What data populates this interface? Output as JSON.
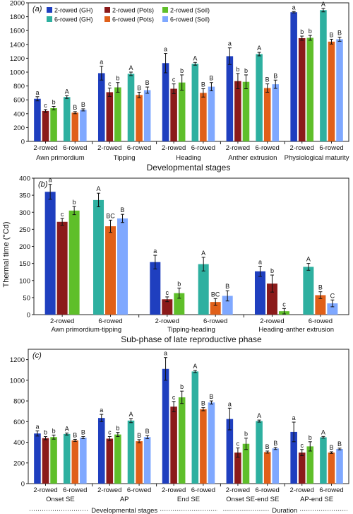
{
  "y_axis_shared_label": "Thermal time (°Cd)",
  "legend": {
    "rows": [
      [
        {
          "label": "2-rowed (GH)",
          "color": "#1f3fbf"
        },
        {
          "label": "2-rowed (Pots)",
          "color": "#8b1a1a"
        },
        {
          "label": "2-rowed (Soil)",
          "color": "#5fbf2a"
        }
      ],
      [
        {
          "label": "6-rowed (GH)",
          "color": "#2eb0a0"
        },
        {
          "label": "6-rowed (Pots)",
          "color": "#e0601a"
        },
        {
          "label": "6-rowed (Soil)",
          "color": "#7fa8ff"
        }
      ]
    ]
  },
  "chart_data": [
    {
      "type": "bar",
      "panel": "(a)",
      "xlabel": "Developmental stages",
      "ylim": [
        0,
        2000
      ],
      "yticks": [
        0,
        200,
        400,
        600,
        800,
        1000,
        1200,
        1400,
        1600,
        1800,
        2000
      ],
      "grid": false,
      "legend_position": "top-left",
      "groups": [
        {
          "name": "Awn primordium",
          "subgroups": [
            {
              "name": "2-rowed",
              "values": [
                615,
                440,
                480
              ],
              "errors": [
                30,
                20,
                25
              ],
              "letters": [
                "a",
                "c",
                "b"
              ]
            },
            {
              "name": "6-rowed",
              "values": [
                640,
                415,
                455
              ],
              "errors": [
                20,
                15,
                15
              ],
              "letters": [
                "A",
                "B",
                "B"
              ]
            }
          ]
        },
        {
          "name": "Tipping",
          "subgroups": [
            {
              "name": "2-rowed",
              "values": [
                985,
                710,
                780
              ],
              "errors": [
                100,
                60,
                70
              ],
              "letters": [
                "a",
                "c",
                "b"
              ]
            },
            {
              "name": "6-rowed",
              "values": [
                975,
                670,
                740
              ],
              "errors": [
                25,
                40,
                45
              ],
              "letters": [
                "A",
                "B",
                "B"
              ]
            }
          ]
        },
        {
          "name": "Heading",
          "subgroups": [
            {
              "name": "2-rowed",
              "values": [
                1130,
                760,
                850
              ],
              "errors": [
                140,
                70,
                110
              ],
              "letters": [
                "a",
                "c",
                "b"
              ]
            },
            {
              "name": "6-rowed",
              "values": [
                1120,
                700,
                790
              ],
              "errors": [
                20,
                60,
                60
              ],
              "letters": [
                "A",
                "B",
                "B"
              ]
            }
          ]
        },
        {
          "name": "Anther extrusion",
          "subgroups": [
            {
              "name": "2-rowed",
              "values": [
                1230,
                870,
                860
              ],
              "errors": [
                120,
                110,
                100
              ],
              "letters": [
                "a",
                "b",
                "b"
              ]
            },
            {
              "name": "6-rowed",
              "values": [
                1260,
                770,
                825
              ],
              "errors": [
                25,
                60,
                60
              ],
              "letters": [
                "A",
                "B",
                "B"
              ]
            }
          ]
        },
        {
          "name": "Physiological maturity",
          "subgroups": [
            {
              "name": "2-rowed",
              "values": [
                1865,
                1490,
                1495
              ],
              "errors": [
                10,
                30,
                35
              ],
              "letters": [
                "a",
                "b",
                "b"
              ]
            },
            {
              "name": "6-rowed",
              "values": [
                1895,
                1440,
                1475
              ],
              "errors": [
                25,
                35,
                30
              ],
              "letters": [
                "A",
                "B",
                "B"
              ]
            }
          ]
        }
      ],
      "series": [
        {
          "name": "2-rowed (GH)",
          "color": "#1f3fbf"
        },
        {
          "name": "2-rowed (Pots)",
          "color": "#8b1a1a"
        },
        {
          "name": "2-rowed (Soil)",
          "color": "#5fbf2a"
        },
        {
          "name": "6-rowed (GH)",
          "color": "#2eb0a0"
        },
        {
          "name": "6-rowed (Pots)",
          "color": "#e0601a"
        },
        {
          "name": "6-rowed (Soil)",
          "color": "#7fa8ff"
        }
      ]
    },
    {
      "type": "bar",
      "panel": "(b)",
      "xlabel": "Sub-phase of late reproductive phase",
      "ylim": [
        0,
        400
      ],
      "yticks": [
        0,
        50,
        100,
        150,
        200,
        250,
        300,
        350,
        400
      ],
      "grid": false,
      "groups": [
        {
          "name": "Awn primordium-tipping",
          "subgroups": [
            {
              "name": "2-rowed",
              "values": [
                360,
                272,
                305
              ],
              "errors": [
                22,
                10,
                12
              ],
              "letters": [
                "a",
                "c",
                "b"
              ]
            },
            {
              "name": "6-rowed",
              "values": [
                336,
                259,
                282
              ],
              "errors": [
                20,
                18,
                12
              ],
              "letters": [
                "A",
                "BC",
                "B"
              ]
            }
          ]
        },
        {
          "name": "Tipping-heading",
          "subgroups": [
            {
              "name": "2-rowed",
              "values": [
                154,
                45,
                63
              ],
              "errors": [
                20,
                7,
                15
              ],
              "letters": [
                "a",
                "c",
                "b"
              ]
            },
            {
              "name": "6-rowed",
              "values": [
                148,
                37,
                55
              ],
              "errors": [
                20,
                10,
                15
              ],
              "letters": [
                "A",
                "BC",
                "B"
              ]
            }
          ]
        },
        {
          "name": "Heading-anther extrusion",
          "subgroups": [
            {
              "name": "2-rowed",
              "values": [
                127,
                91,
                10
              ],
              "errors": [
                15,
                25,
                8
              ],
              "letters": [
                "a",
                "b",
                "c"
              ]
            },
            {
              "name": "6-rowed",
              "values": [
                140,
                57,
                33
              ],
              "errors": [
                10,
                10,
                10
              ],
              "letters": [
                "A",
                "B",
                "C"
              ]
            }
          ]
        }
      ]
    },
    {
      "type": "bar",
      "panel": "(c)",
      "xlabel": "",
      "ylim": [
        0,
        1300
      ],
      "yticks": [
        0,
        200,
        400,
        600,
        800,
        1000,
        1200
      ],
      "grid": false,
      "footer_labels": [
        "Developmental stages",
        "Duration"
      ],
      "groups": [
        {
          "name": "Onset SE",
          "subgroups": [
            {
              "name": "2-rowed",
              "values": [
                485,
                440,
                450
              ],
              "errors": [
                25,
                15,
                20
              ],
              "letters": [
                "a",
                "b",
                "b"
              ]
            },
            {
              "name": "6-rowed",
              "values": [
                480,
                418,
                445
              ],
              "errors": [
                10,
                10,
                10
              ],
              "letters": [
                "A",
                "B",
                "B"
              ]
            }
          ]
        },
        {
          "name": "AP",
          "subgroups": [
            {
              "name": "2-rowed",
              "values": [
                635,
                435,
                475
              ],
              "errors": [
                35,
                20,
                20
              ],
              "letters": [
                "a",
                "c",
                "b"
              ]
            },
            {
              "name": "6-rowed",
              "values": [
                610,
                410,
                450
              ],
              "errors": [
                20,
                15,
                15
              ],
              "letters": [
                "A",
                "B",
                "B"
              ]
            }
          ]
        },
        {
          "name": "End SE",
          "subgroups": [
            {
              "name": "2-rowed",
              "values": [
                1110,
                745,
                835
              ],
              "errors": [
                110,
                50,
                60
              ],
              "letters": [
                "a",
                "c",
                "b"
              ]
            },
            {
              "name": "6-rowed",
              "values": [
                1085,
                720,
                785
              ],
              "errors": [
                10,
                15,
                15
              ],
              "letters": [
                "A",
                "B",
                "B"
              ]
            }
          ]
        },
        {
          "name": "Onset SE-end SE",
          "subgroups": [
            {
              "name": "2-rowed",
              "values": [
                625,
                300,
                385
              ],
              "errors": [
                105,
                45,
                55
              ],
              "letters": [
                "a",
                "c",
                "b"
              ]
            },
            {
              "name": "6-rowed",
              "values": [
                605,
                305,
                340
              ],
              "errors": [
                10,
                10,
                10
              ],
              "letters": [
                "A",
                "B",
                "B"
              ]
            }
          ]
        },
        {
          "name": "AP-end SE",
          "subgroups": [
            {
              "name": "2-rowed",
              "values": [
                500,
                300,
                360
              ],
              "errors": [
                95,
                30,
                45
              ],
              "letters": [
                "a",
                "c",
                "b"
              ]
            },
            {
              "name": "6-rowed",
              "values": [
                448,
                300,
                335
              ],
              "errors": [
                8,
                8,
                8
              ],
              "letters": [
                "A",
                "B",
                "B"
              ]
            }
          ]
        }
      ]
    }
  ]
}
